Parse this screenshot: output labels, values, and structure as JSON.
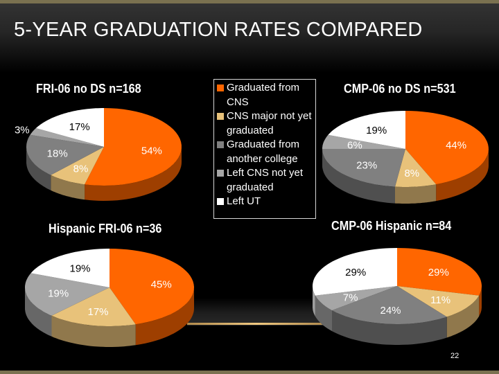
{
  "slide": {
    "title": "5-YEAR GRADUATION RATES COMPARED",
    "page_number": "22"
  },
  "colors": {
    "graduated_cns": "#ff6600",
    "cns_not_yet": "#e8c27a",
    "grad_other": "#808080",
    "left_cns": "#a6a6a6",
    "left_ut": "#ffffff",
    "accent_bar": "#7a7150"
  },
  "legend": [
    {
      "label": "Graduated from CNS",
      "color": "#ff6600"
    },
    {
      "label": "CNS major not yet graduated",
      "color": "#e8c27a"
    },
    {
      "label": "Graduated from another college",
      "color": "#808080"
    },
    {
      "label": "Left CNS not yet graduated",
      "color": "#a6a6a6"
    },
    {
      "label": "Left UT",
      "color": "#ffffff"
    }
  ],
  "chart_data": [
    {
      "type": "pie",
      "title": "FRI-06 no DS n=168",
      "categories": [
        "Graduated from CNS",
        "CNS major not yet graduated",
        "Graduated from another college",
        "Left CNS not yet graduated",
        "Left UT"
      ],
      "values": [
        54,
        8,
        18,
        3,
        17
      ],
      "labels": [
        "54%",
        "8%",
        "18%",
        "3%",
        "17%"
      ],
      "legend": "center"
    },
    {
      "type": "pie",
      "title": "CMP-06 no DS n=531",
      "categories": [
        "Graduated from CNS",
        "CNS major not yet graduated",
        "Graduated from another college",
        "Left CNS not yet graduated",
        "Left UT"
      ],
      "values": [
        44,
        8,
        23,
        6,
        19
      ],
      "labels": [
        "44%",
        "8%",
        "23%",
        "6%",
        "19%"
      ],
      "legend": "center"
    },
    {
      "type": "pie",
      "title": "Hispanic FRI-06 n=36",
      "categories": [
        "Graduated from CNS",
        "CNS major not yet graduated",
        "Graduated from another college",
        "Left CNS not yet graduated",
        "Left UT"
      ],
      "values": [
        45,
        17,
        0,
        19,
        19
      ],
      "labels": [
        "45%",
        "17%",
        "",
        "19%",
        "19%"
      ],
      "legend": "center"
    },
    {
      "type": "pie",
      "title": "CMP-06 Hispanic n=84",
      "categories": [
        "Graduated from CNS",
        "CNS major not yet graduated",
        "Graduated from another college",
        "Left CNS not yet graduated",
        "Left UT"
      ],
      "values": [
        29,
        11,
        24,
        7,
        29
      ],
      "labels": [
        "29%",
        "11%",
        "24%",
        "7%",
        "29%"
      ],
      "legend": "center"
    }
  ]
}
